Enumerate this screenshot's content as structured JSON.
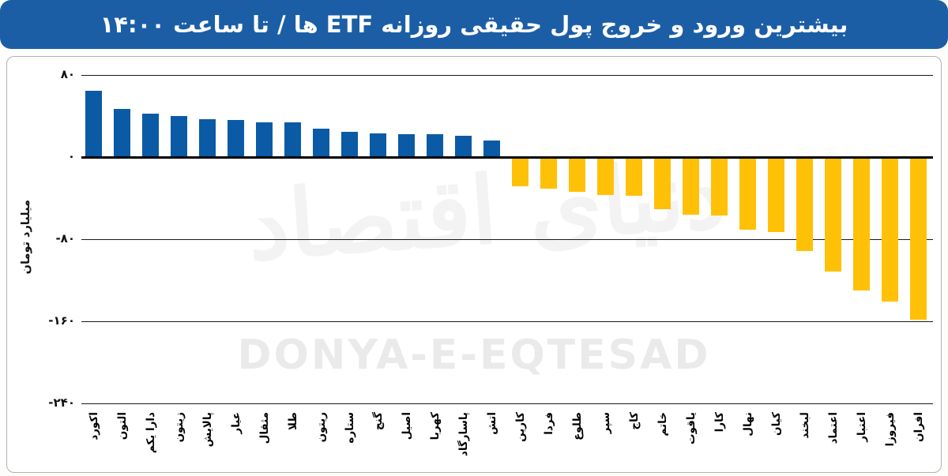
{
  "header": {
    "title": "بیشترین ورود و خروج پول حقیقی روزانه ETF ها / تا ساعت ۱۴:۰۰"
  },
  "watermark": {
    "latin": "DONYA-E-EQTESAD",
    "persian_calligraphy": "دنیای اقتصاد"
  },
  "colors": {
    "header_bg": "#1B5EA6",
    "header_text": "#FFFFFF",
    "inflow_bar": "#0B5AA5",
    "outflow_bar": "#FFC107",
    "grid_line": "#1A1A1A",
    "zero_line": "#000000",
    "watermark": "#EAEAEA",
    "card_border": "#AEB2AE"
  },
  "chart_data": {
    "type": "bar",
    "title": "بیشترین ورود و خروج پول حقیقی روزانه ETF ها / تا ساعت ۱۴:۰۰",
    "ylabel": "میلیارد تومان",
    "ylim": [
      -240,
      80
    ],
    "grid": true,
    "legend": "none",
    "positive_color": "#0B5AA5",
    "negative_color": "#FFC107",
    "y_ticks": [
      {
        "label": "۸۰",
        "value": 80
      },
      {
        "label": "۰",
        "value": 0
      },
      {
        "label": "-۸۰",
        "value": -80
      },
      {
        "label": "-۱۶۰",
        "value": -160
      },
      {
        "label": "-۲۴۰",
        "value": -240
      }
    ],
    "categories": [
      "اکورد",
      "التون",
      "دارا یکم",
      "زیتون",
      "پالایش",
      "عیار",
      "مثقال",
      "طلا",
      "ریتون",
      "ستاره",
      "گنج",
      "اصیل",
      "کهربا",
      "پاسارگاد",
      "اتش",
      "کارین",
      "فردا",
      "طلوع",
      "سپر",
      "کاج",
      "خاتم",
      "یاقوت",
      "کارا",
      "نهال",
      "کیان",
      "لبخند",
      "اعتماد",
      "اعتبار",
      "فیروزا",
      "افران"
    ],
    "values": [
      65,
      47,
      42,
      40,
      37,
      36,
      34,
      34,
      28,
      25,
      23,
      22,
      22,
      21,
      16,
      -28,
      -30,
      -33,
      -36,
      -37,
      -50,
      -55,
      -56,
      -70,
      -72,
      -91,
      -111,
      -129,
      -140,
      -158
    ]
  }
}
